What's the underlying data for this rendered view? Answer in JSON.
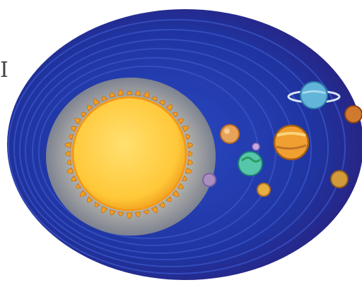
{
  "scene": {
    "subject": "solar-system-illustration",
    "colors": {
      "background": "#ffffff",
      "outer_space": "#1b2a8a",
      "orbit_rings": "#2f47b8",
      "inner_space": "#1f3aa8",
      "glow": "#9aa0a8",
      "sun_core": "#ffd24a",
      "sun_rim": "#f39a1e",
      "sun_rays": "#f0a01c"
    }
  },
  "edge_text": "I",
  "planets": [
    {
      "name": "mercury",
      "color": "#a07fb0"
    },
    {
      "name": "venus",
      "color": "#e8a35a"
    },
    {
      "name": "earth",
      "color": "#58c8a8"
    },
    {
      "name": "mars",
      "color": "#e8b040"
    },
    {
      "name": "jupiter",
      "color": "#f0a030"
    },
    {
      "name": "saturn",
      "color": "#62b4d8"
    },
    {
      "name": "uranus",
      "color": "#d07a30"
    },
    {
      "name": "neptune",
      "color": "#d39a3a"
    },
    {
      "name": "moon",
      "color": "#b8a8c8"
    }
  ]
}
